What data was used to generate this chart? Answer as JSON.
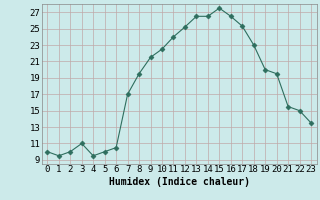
{
  "xlabel": "Humidex (Indice chaleur)",
  "x": [
    0,
    1,
    2,
    3,
    4,
    5,
    6,
    7,
    8,
    9,
    10,
    11,
    12,
    13,
    14,
    15,
    16,
    17,
    18,
    19,
    20,
    21,
    22,
    23
  ],
  "y": [
    10.0,
    9.5,
    10.0,
    11.0,
    9.5,
    10.0,
    10.5,
    17.0,
    19.5,
    21.5,
    22.5,
    24.0,
    25.2,
    26.5,
    26.5,
    27.5,
    26.5,
    25.3,
    23.0,
    20.0,
    19.5,
    15.5,
    15.0,
    13.5
  ],
  "line_color": "#2e6e5e",
  "marker": "D",
  "marker_size": 2.5,
  "background_color": "#cceaea",
  "grid_color": "#c0a8a8",
  "ylim": [
    8.5,
    28
  ],
  "yticks": [
    9,
    11,
    13,
    15,
    17,
    19,
    21,
    23,
    25,
    27
  ],
  "xticks": [
    0,
    1,
    2,
    3,
    4,
    5,
    6,
    7,
    8,
    9,
    10,
    11,
    12,
    13,
    14,
    15,
    16,
    17,
    18,
    19,
    20,
    21,
    22,
    23
  ],
  "xtick_labels": [
    "0",
    "1",
    "2",
    "3",
    "4",
    "5",
    "6",
    "7",
    "8",
    "9",
    "10",
    "11",
    "12",
    "13",
    "14",
    "15",
    "16",
    "17",
    "18",
    "19",
    "20",
    "21",
    "22",
    "23"
  ],
  "label_fontsize": 7,
  "tick_fontsize": 6.5
}
